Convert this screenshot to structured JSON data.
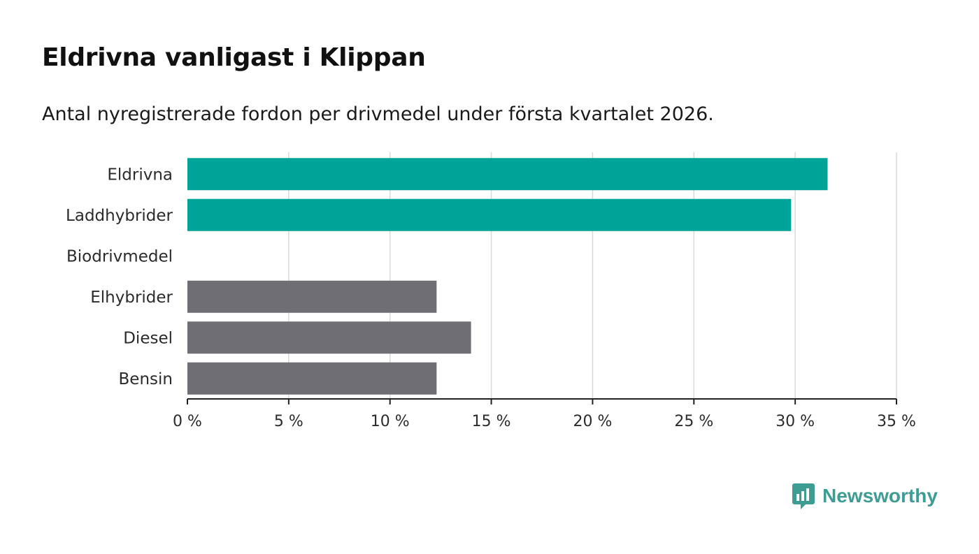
{
  "title": "Eldrivna vanligast i Klippan",
  "subtitle": "Antal nyregistrerade fordon per drivmedel under första kvartalet 2026.",
  "brand": {
    "name": "Newsworthy",
    "color": "#3e9d93",
    "icon": "newsworthy-chart-bubble-icon"
  },
  "colors": {
    "highlight": "#00a398",
    "neutral": "#6f6e74",
    "grid": "#d9d9d9",
    "axis": "#222222"
  },
  "chart_data": {
    "type": "bar",
    "orientation": "horizontal",
    "categories": [
      "Eldrivna",
      "Laddhybrider",
      "Biodrivmedel",
      "Elhybrider",
      "Diesel",
      "Bensin"
    ],
    "values": [
      31.6,
      29.8,
      0,
      12.3,
      14.0,
      12.3
    ],
    "highlighted": [
      true,
      true,
      true,
      false,
      false,
      false
    ],
    "xlim": [
      0,
      35
    ],
    "ticks": [
      0,
      5,
      10,
      15,
      20,
      25,
      30,
      35
    ],
    "tick_labels": [
      "0 %",
      "5 %",
      "10 %",
      "15 %",
      "20 %",
      "25 %",
      "30 %",
      "35 %"
    ],
    "xlabel": "",
    "ylabel": "",
    "grid": true
  }
}
